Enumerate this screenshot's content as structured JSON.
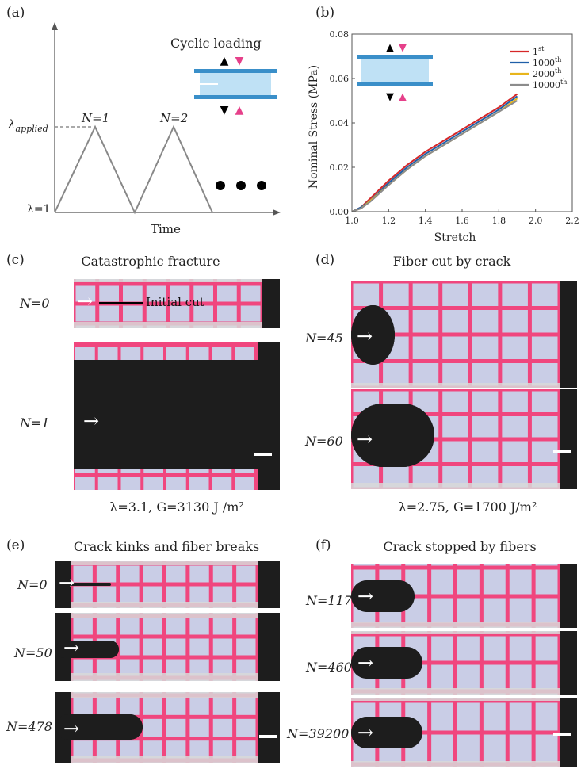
{
  "panel_a": {
    "label": "(a)",
    "title": "Cyclic loading",
    "xlabel": "Time",
    "y_applied_label": "λ",
    "y_applied_sub": "applied",
    "y_base_label": "λ=1",
    "cycle_labels": [
      "N=1",
      "N=2"
    ]
  },
  "panel_b": {
    "label": "(b)",
    "chart_data": {
      "type": "line",
      "xlabel": "Stretch",
      "ylabel": "Nominal Stress (MPa)",
      "xlim": [
        1.0,
        2.2
      ],
      "ylim": [
        0.0,
        0.08
      ],
      "xticks": [
        "1.0",
        "1.2",
        "1.4",
        "1.6",
        "1.8",
        "2.0",
        "2.2"
      ],
      "yticks": [
        "0.00",
        "0.02",
        "0.04",
        "0.06",
        "0.08"
      ],
      "legend_position": "top-right",
      "series": [
        {
          "name": "1st",
          "color": "#d62728",
          "x": [
            1.0,
            1.05,
            1.1,
            1.2,
            1.3,
            1.4,
            1.5,
            1.6,
            1.7,
            1.8,
            1.9
          ],
          "y": [
            0.0,
            0.002,
            0.006,
            0.014,
            0.021,
            0.027,
            0.032,
            0.037,
            0.042,
            0.047,
            0.053
          ]
        },
        {
          "name": "1000th",
          "color": "#1f5fa8",
          "x": [
            1.0,
            1.05,
            1.1,
            1.2,
            1.3,
            1.4,
            1.5,
            1.6,
            1.7,
            1.8,
            1.9
          ],
          "y": [
            0.0,
            0.002,
            0.005,
            0.013,
            0.02,
            0.026,
            0.031,
            0.036,
            0.041,
            0.046,
            0.052
          ]
        },
        {
          "name": "2000th",
          "color": "#e8b51c",
          "x": [
            1.0,
            1.05,
            1.1,
            1.2,
            1.3,
            1.4,
            1.5,
            1.6,
            1.7,
            1.8,
            1.9
          ],
          "y": [
            0.0,
            0.0015,
            0.005,
            0.012,
            0.019,
            0.025,
            0.03,
            0.035,
            0.04,
            0.045,
            0.051
          ]
        },
        {
          "name": "10000th",
          "color": "#8c8c8c",
          "x": [
            1.0,
            1.05,
            1.1,
            1.2,
            1.3,
            1.4,
            1.5,
            1.6,
            1.7,
            1.8,
            1.9
          ],
          "y": [
            0.0,
            0.0015,
            0.0045,
            0.012,
            0.019,
            0.025,
            0.03,
            0.035,
            0.04,
            0.045,
            0.05
          ]
        }
      ],
      "legend_labels": [
        {
          "base": "1",
          "sup": "st"
        },
        {
          "base": "1000",
          "sup": "th"
        },
        {
          "base": "2000",
          "sup": "th"
        },
        {
          "base": "10000",
          "sup": "th"
        }
      ]
    }
  },
  "panel_c": {
    "label": "(c)",
    "title": "Catastrophic fracture",
    "rows": [
      {
        "n": "N=0"
      },
      {
        "n": "N=1"
      }
    ],
    "annotation": "Initial cut",
    "caption": "λ=3.1, G=3130 J /m²"
  },
  "panel_d": {
    "label": "(d)",
    "title": "Fiber cut by crack",
    "rows": [
      {
        "n": "N=45"
      },
      {
        "n": "N=60"
      }
    ],
    "caption": "λ=2.75, G=1700 J/m²"
  },
  "panel_e": {
    "label": "(e)",
    "title": "Crack kinks and fiber breaks",
    "rows": [
      {
        "n": "N=0"
      },
      {
        "n": "N=50"
      },
      {
        "n": "N=478"
      }
    ]
  },
  "panel_f": {
    "label": "(f)",
    "title": "Crack stopped by fibers",
    "rows": [
      {
        "n": "N=117"
      },
      {
        "n": "N=460"
      },
      {
        "n": "N=39200"
      }
    ]
  },
  "colors": {
    "gel": "#c9cde6",
    "fiber": "#f0467e",
    "background": "#1d1d1d",
    "clamp": "#d8d8d8"
  }
}
